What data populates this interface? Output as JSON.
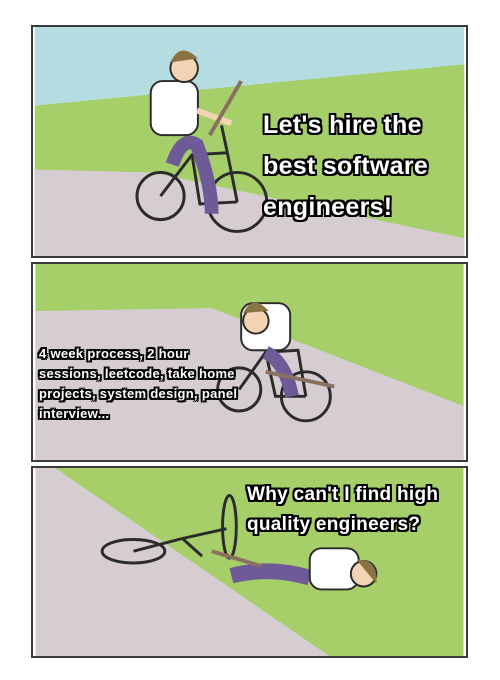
{
  "meme": {
    "panels": [
      {
        "caption": "Let's hire the best software engineers!"
      },
      {
        "caption": "4 week process, 2 hour sessions, leetcode, take home projects, system design, panel interview..."
      },
      {
        "caption": "Why can't I find high quality engineers?"
      }
    ],
    "colors": {
      "sky": "#b5dde1",
      "grass": "#a6cf6a",
      "road": "#d5cdd2",
      "shirt": "#ffffff",
      "pants": "#6d5a97",
      "hair": "#8a7342",
      "skin": "#f2d3b3",
      "stick": "#8a7060",
      "outline": "#2b2b2b"
    }
  }
}
